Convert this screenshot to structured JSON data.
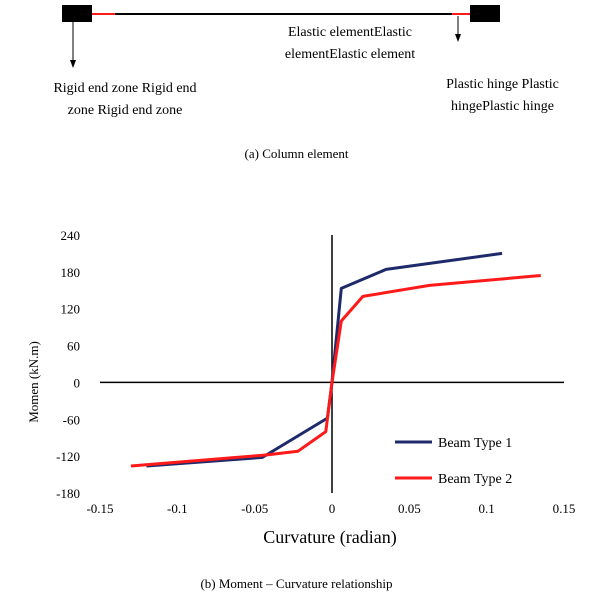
{
  "figure_a": {
    "elastic_label_line1": "Elastic elementElastic",
    "elastic_label_line2": "elementElastic element",
    "rigid_label_line1": "Rigid end zone Rigid end",
    "rigid_label_line2": "zone Rigid end zone",
    "plastic_label_line1": "Plastic hinge Plastic",
    "plastic_label_line2": "hingePlastic hinge",
    "caption": "(a) Column element"
  },
  "figure_b_caption": "(b) Moment – Curvature relationship",
  "chart_data": {
    "type": "line",
    "title": "",
    "xlabel": "Curvature (radian)",
    "ylabel": "Momen (kN.m)",
    "xlim": [
      -0.15,
      0.15
    ],
    "ylim": [
      -180,
      240
    ],
    "xticks": [
      "-0.15",
      "-0.1",
      "-0.05",
      "0",
      "0.05",
      "0.1",
      "0.15"
    ],
    "yticks": [
      "240",
      "180",
      "120",
      "60",
      "0",
      "-60",
      "-120",
      "-180"
    ],
    "legend_position": "bottom-right",
    "grid": false,
    "series": [
      {
        "name": "Beam Type 1",
        "color": "#1f2a6b",
        "points": [
          [
            -0.12,
            -136
          ],
          [
            -0.045,
            -122
          ],
          [
            -0.003,
            -58
          ],
          [
            0,
            0
          ],
          [
            0.006,
            153
          ],
          [
            0.035,
            184
          ],
          [
            0.11,
            210
          ]
        ]
      },
      {
        "name": "Beam Type 2",
        "color": "#ff1a1a",
        "points": [
          [
            -0.13,
            -136
          ],
          [
            -0.042,
            -118
          ],
          [
            -0.022,
            -112
          ],
          [
            -0.004,
            -80
          ],
          [
            0,
            0
          ],
          [
            0.006,
            100
          ],
          [
            0.02,
            140
          ],
          [
            0.063,
            158
          ],
          [
            0.135,
            174
          ]
        ]
      }
    ]
  }
}
